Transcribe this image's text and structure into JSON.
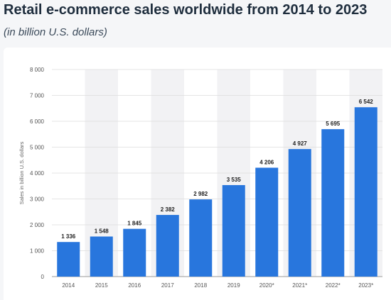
{
  "title": "Retail e-commerce sales worldwide from 2014 to 2023",
  "subtitle": "(in billion U.S. dollars)",
  "chart_data": {
    "type": "bar",
    "title": "Retail e-commerce sales worldwide from 2014 to 2023",
    "subtitle": "(in billion U.S. dollars)",
    "xlabel": "",
    "ylabel": "Sales in billion U.S. dollars",
    "categories": [
      "2014",
      "2015",
      "2016",
      "2017",
      "2018",
      "2019",
      "2020*",
      "2021*",
      "2022*",
      "2023*"
    ],
    "values": [
      1336,
      1548,
      1845,
      2382,
      2982,
      3535,
      4206,
      4927,
      5695,
      6542
    ],
    "value_labels": [
      "1 336",
      "1 548",
      "1 845",
      "2 382",
      "2 982",
      "3 535",
      "4 206",
      "4 927",
      "5 695",
      "6 542"
    ],
    "ylim": [
      0,
      8000
    ],
    "yticks": [
      0,
      1000,
      2000,
      3000,
      4000,
      5000,
      6000,
      7000,
      8000
    ],
    "ytick_labels": [
      "0",
      "1 000",
      "2 000",
      "3 000",
      "4 000",
      "5 000",
      "6 000",
      "7 000",
      "8 000"
    ],
    "grid": true,
    "bar_color": "#2876dd",
    "band_color": "#f2f2f4"
  }
}
